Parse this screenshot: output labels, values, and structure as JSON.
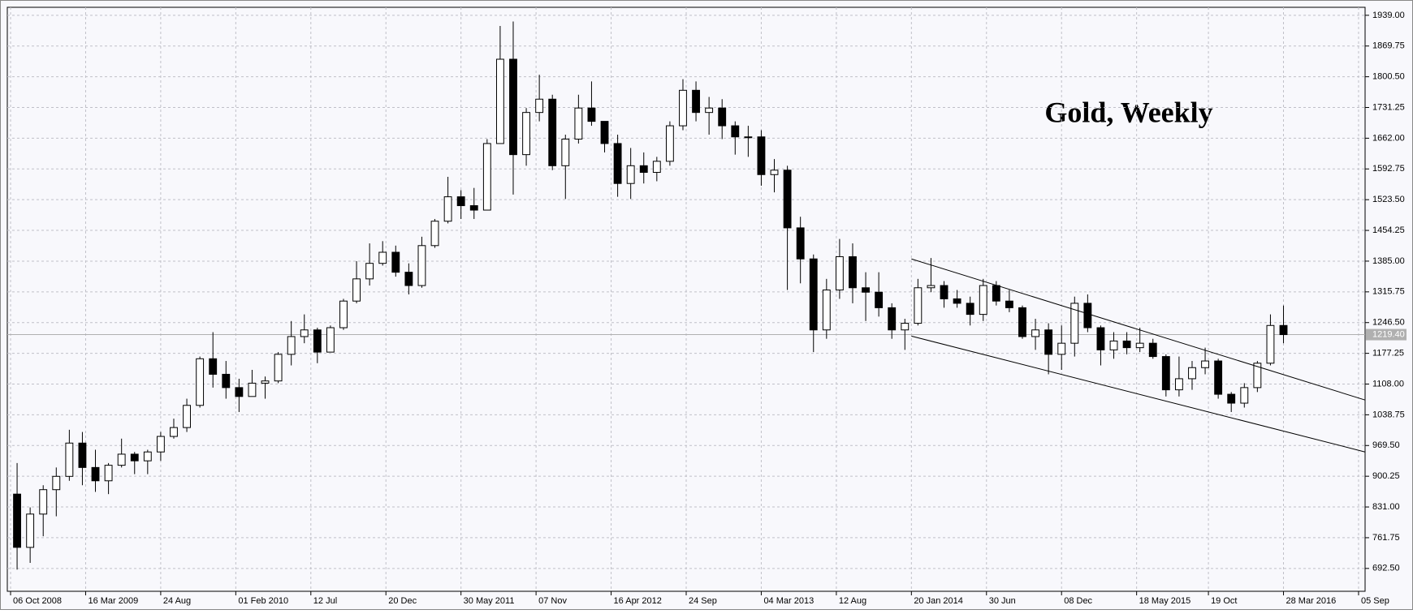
{
  "chart_data": {
    "type": "candlestick",
    "title": "Gold, Weekly",
    "x": [
      "2008-10-06",
      "2008-11-03",
      "2008-12-01",
      "2008-12-29",
      "2009-01-26",
      "2009-02-23",
      "2009-03-23",
      "2009-04-20",
      "2009-05-18",
      "2009-06-15",
      "2009-07-13",
      "2009-08-10",
      "2009-09-07",
      "2009-10-05",
      "2009-11-02",
      "2009-11-30",
      "2009-12-28",
      "2010-01-25",
      "2010-02-22",
      "2010-03-22",
      "2010-04-19",
      "2010-05-17",
      "2010-06-14",
      "2010-07-12",
      "2010-08-09",
      "2010-09-06",
      "2010-10-04",
      "2010-11-01",
      "2010-11-29",
      "2010-12-27",
      "2011-01-24",
      "2011-02-21",
      "2011-03-21",
      "2011-04-18",
      "2011-05-16",
      "2011-06-13",
      "2011-07-11",
      "2011-08-08",
      "2011-09-05",
      "2011-10-03",
      "2011-10-31",
      "2011-11-28",
      "2011-12-26",
      "2012-01-23",
      "2012-02-20",
      "2012-03-19",
      "2012-04-16",
      "2012-05-14",
      "2012-06-11",
      "2012-07-09",
      "2012-08-06",
      "2012-09-03",
      "2012-10-01",
      "2012-10-29",
      "2012-11-26",
      "2012-12-24",
      "2013-01-21",
      "2013-02-18",
      "2013-03-18",
      "2013-04-15",
      "2013-05-13",
      "2013-06-10",
      "2013-07-08",
      "2013-08-05",
      "2013-09-02",
      "2013-09-30",
      "2013-10-28",
      "2013-11-25",
      "2013-12-23",
      "2014-01-20",
      "2014-02-17",
      "2014-03-17",
      "2014-04-14",
      "2014-05-12",
      "2014-06-09",
      "2014-07-07",
      "2014-08-04",
      "2014-09-01",
      "2014-09-29",
      "2014-10-27",
      "2014-11-24",
      "2014-12-22",
      "2015-01-19",
      "2015-02-16",
      "2015-03-16",
      "2015-04-13",
      "2015-05-11",
      "2015-06-08",
      "2015-07-06",
      "2015-08-03",
      "2015-08-31",
      "2015-09-28",
      "2015-10-26",
      "2015-11-23",
      "2015-12-21",
      "2016-01-18",
      "2016-02-15",
      "2016-03-14"
    ],
    "open": [
      860,
      740,
      815,
      870,
      900,
      975,
      920,
      890,
      925,
      950,
      935,
      955,
      990,
      1010,
      1060,
      1165,
      1130,
      1100,
      1080,
      1110,
      1115,
      1175,
      1215,
      1230,
      1180,
      1235,
      1295,
      1345,
      1380,
      1405,
      1360,
      1330,
      1420,
      1475,
      1530,
      1510,
      1500,
      1650,
      1840,
      1625,
      1720,
      1750,
      1600,
      1660,
      1730,
      1700,
      1650,
      1560,
      1600,
      1585,
      1610,
      1690,
      1770,
      1720,
      1730,
      1690,
      1665,
      1665,
      1580,
      1590,
      1460,
      1390,
      1230,
      1320,
      1395,
      1325,
      1315,
      1280,
      1230,
      1245,
      1325,
      1330,
      1300,
      1290,
      1265,
      1330,
      1295,
      1280,
      1215,
      1230,
      1175,
      1200,
      1290,
      1235,
      1185,
      1205,
      1190,
      1200,
      1170,
      1095,
      1120,
      1145,
      1160,
      1085,
      1065,
      1100,
      1155,
      1240
    ],
    "high": [
      930,
      830,
      880,
      920,
      1005,
      1000,
      960,
      930,
      985,
      955,
      960,
      1000,
      1030,
      1075,
      1170,
      1225,
      1160,
      1120,
      1140,
      1125,
      1180,
      1250,
      1265,
      1235,
      1240,
      1300,
      1385,
      1425,
      1430,
      1420,
      1380,
      1440,
      1480,
      1575,
      1545,
      1550,
      1660,
      1915,
      1925,
      1730,
      1805,
      1760,
      1670,
      1760,
      1790,
      1700,
      1670,
      1640,
      1630,
      1620,
      1700,
      1795,
      1790,
      1755,
      1750,
      1700,
      1690,
      1680,
      1615,
      1600,
      1485,
      1400,
      1345,
      1435,
      1425,
      1360,
      1360,
      1290,
      1255,
      1345,
      1392,
      1340,
      1320,
      1305,
      1345,
      1340,
      1320,
      1285,
      1255,
      1245,
      1240,
      1305,
      1310,
      1240,
      1225,
      1225,
      1235,
      1210,
      1175,
      1170,
      1160,
      1190,
      1165,
      1090,
      1110,
      1160,
      1265,
      1285
    ],
    "low": [
      690,
      705,
      765,
      810,
      890,
      880,
      865,
      860,
      920,
      905,
      905,
      935,
      985,
      1000,
      1055,
      1100,
      1075,
      1045,
      1080,
      1075,
      1110,
      1150,
      1200,
      1155,
      1180,
      1230,
      1290,
      1330,
      1375,
      1350,
      1310,
      1325,
      1415,
      1470,
      1480,
      1480,
      1500,
      1650,
      1535,
      1600,
      1700,
      1590,
      1525,
      1650,
      1690,
      1630,
      1530,
      1525,
      1560,
      1565,
      1600,
      1680,
      1700,
      1670,
      1660,
      1625,
      1620,
      1555,
      1540,
      1320,
      1335,
      1180,
      1210,
      1300,
      1290,
      1250,
      1260,
      1210,
      1185,
      1240,
      1315,
      1280,
      1280,
      1240,
      1250,
      1285,
      1270,
      1210,
      1185,
      1130,
      1140,
      1170,
      1225,
      1150,
      1165,
      1175,
      1180,
      1165,
      1080,
      1080,
      1095,
      1130,
      1075,
      1045,
      1055,
      1090,
      1150,
      1200
    ],
    "close": [
      740,
      815,
      870,
      900,
      975,
      920,
      890,
      925,
      950,
      935,
      955,
      990,
      1010,
      1060,
      1165,
      1130,
      1100,
      1080,
      1110,
      1115,
      1175,
      1215,
      1230,
      1180,
      1235,
      1295,
      1345,
      1380,
      1405,
      1360,
      1330,
      1420,
      1475,
      1530,
      1510,
      1500,
      1650,
      1840,
      1625,
      1720,
      1750,
      1600,
      1660,
      1730,
      1700,
      1650,
      1560,
      1600,
      1585,
      1610,
      1690,
      1770,
      1720,
      1730,
      1690,
      1665,
      1665,
      1580,
      1590,
      1460,
      1390,
      1230,
      1320,
      1395,
      1325,
      1315,
      1280,
      1230,
      1245,
      1325,
      1330,
      1300,
      1290,
      1265,
      1330,
      1295,
      1280,
      1215,
      1230,
      1175,
      1200,
      1290,
      1235,
      1185,
      1205,
      1190,
      1200,
      1170,
      1095,
      1120,
      1145,
      1160,
      1085,
      1065,
      1100,
      1155,
      1240,
      1219.4
    ],
    "xlim": [
      "2008-09-29",
      "2016-09-19"
    ],
    "ylim": [
      641,
      1957
    ],
    "yticks": [
      {
        "value": 1939,
        "label": "1939.00"
      },
      {
        "value": 1869.75,
        "label": "1869.75"
      },
      {
        "value": 1800.5,
        "label": "1800.50"
      },
      {
        "value": 1731.25,
        "label": "1731.25"
      },
      {
        "value": 1662,
        "label": "1662.00"
      },
      {
        "value": 1592.75,
        "label": "1592.75"
      },
      {
        "value": 1523.5,
        "label": "1523.50"
      },
      {
        "value": 1454.25,
        "label": "1454.25"
      },
      {
        "value": 1385,
        "label": "1385.00"
      },
      {
        "value": 1315.75,
        "label": "1315.75"
      },
      {
        "value": 1246.5,
        "label": "1246.50"
      },
      {
        "value": 1177.25,
        "label": "1177.25"
      },
      {
        "value": 1108,
        "label": "1108.00"
      },
      {
        "value": 1038.75,
        "label": "1038.75"
      },
      {
        "value": 969.5,
        "label": "969.50"
      },
      {
        "value": 900.25,
        "label": "900.25"
      },
      {
        "value": 831,
        "label": "831.00"
      },
      {
        "value": 761.75,
        "label": "761.75"
      },
      {
        "value": 692.5,
        "label": "692.50"
      }
    ],
    "xticks": [
      {
        "value": "2008-10-06",
        "label": "06 Oct 2008"
      },
      {
        "value": "2009-03-16",
        "label": "16 Mar 2009"
      },
      {
        "value": "2009-08-24",
        "label": "24 Aug"
      },
      {
        "value": "2010-02-01",
        "label": "01 Feb 2010"
      },
      {
        "value": "2010-07-12",
        "label": "12 Jul"
      },
      {
        "value": "2010-12-20",
        "label": "20 Dec"
      },
      {
        "value": "2011-05-30",
        "label": "30 May 2011"
      },
      {
        "value": "2011-11-07",
        "label": "07 Nov"
      },
      {
        "value": "2012-04-16",
        "label": "16 Apr 2012"
      },
      {
        "value": "2012-09-24",
        "label": "24 Sep"
      },
      {
        "value": "2013-03-04",
        "label": "04 Mar 2013"
      },
      {
        "value": "2013-08-12",
        "label": "12 Aug"
      },
      {
        "value": "2014-01-20",
        "label": "20 Jan 2014"
      },
      {
        "value": "2014-06-30",
        "label": "30 Jun"
      },
      {
        "value": "2014-12-08",
        "label": "08 Dec"
      },
      {
        "value": "2015-05-18",
        "label": "18 May 2015"
      },
      {
        "value": "2015-10-19",
        "label": "19 Oct"
      },
      {
        "value": "2016-03-28",
        "label": "28 Mar 2016"
      },
      {
        "value": "2016-09-05",
        "label": "05 Sep"
      }
    ],
    "current_price": {
      "value": 1219.4,
      "label": "1219.40"
    },
    "trendlines": [
      {
        "x": [
          "2014-01-20",
          "2016-09-19"
        ],
        "y": [
          1390,
          1072
        ]
      },
      {
        "x": [
          "2014-01-20",
          "2016-09-19"
        ],
        "y": [
          1216,
          955
        ]
      }
    ],
    "grid": true,
    "up_color": "#ffffff",
    "down_color": "#000000",
    "color": "#000000"
  }
}
